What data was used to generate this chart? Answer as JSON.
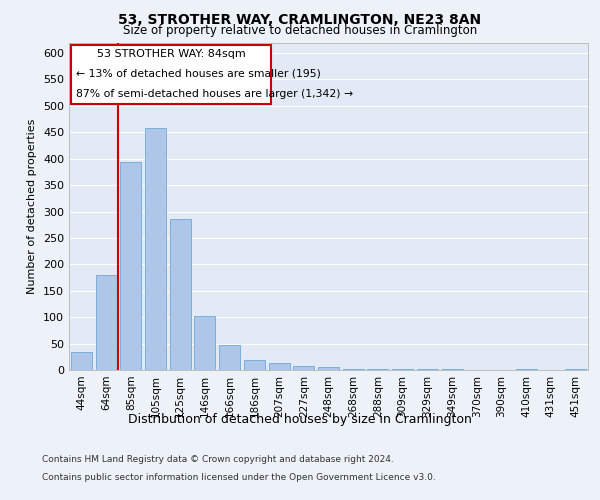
{
  "title": "53, STROTHER WAY, CRAMLINGTON, NE23 8AN",
  "subtitle": "Size of property relative to detached houses in Cramlington",
  "xlabel": "Distribution of detached houses by size in Cramlington",
  "ylabel": "Number of detached properties",
  "footer_line1": "Contains HM Land Registry data © Crown copyright and database right 2024.",
  "footer_line2": "Contains public sector information licensed under the Open Government Licence v3.0.",
  "categories": [
    "44sqm",
    "64sqm",
    "85sqm",
    "105sqm",
    "125sqm",
    "146sqm",
    "166sqm",
    "186sqm",
    "207sqm",
    "227sqm",
    "248sqm",
    "268sqm",
    "288sqm",
    "309sqm",
    "329sqm",
    "349sqm",
    "370sqm",
    "390sqm",
    "410sqm",
    "431sqm",
    "451sqm"
  ],
  "values": [
    35,
    180,
    393,
    458,
    285,
    103,
    47,
    18,
    13,
    8,
    5,
    2,
    1,
    2,
    1,
    1,
    0,
    0,
    1,
    0,
    2
  ],
  "bar_color": "#aec6e8",
  "bar_edgecolor": "#5a9fd4",
  "property_label": "53 STROTHER WAY: 84sqm",
  "annotation_line1": "← 13% of detached houses are smaller (195)",
  "annotation_line2": "87% of semi-detached houses are larger (1,342) →",
  "vline_x_index": 2,
  "vline_color": "#cc0000",
  "annotation_box_color": "#cc0000",
  "ylim": [
    0,
    620
  ],
  "yticks": [
    0,
    50,
    100,
    150,
    200,
    250,
    300,
    350,
    400,
    450,
    500,
    550,
    600
  ],
  "bg_color": "#edf1f8",
  "plot_bg_color": "#e4eaf5",
  "grid_color": "#ffffff"
}
